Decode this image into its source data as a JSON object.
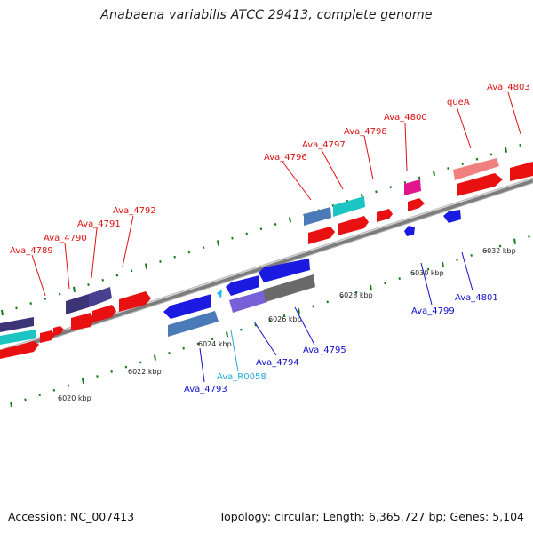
{
  "title": "Anabaena variabilis ATCC 29413, complete genome",
  "footer": {
    "accession": "Accession: NC_007413",
    "topology": "Topology: circular; Length: 6,365,727 bp; Genes: 5,104"
  },
  "colors": {
    "forward_label": "#dd1111",
    "reverse_label": "#1111cc",
    "rna_label": "#22aadd",
    "backbone": "#8a8a8a",
    "tick_mark": "#1a7a1a"
  },
  "ruler": {
    "unit": "kbp",
    "ticks": [
      "6020 kbp",
      "6022 kbp",
      "6024 kbp",
      "6026 kbp",
      "6028 kbp",
      "6030 kbp",
      "6032 kbp"
    ]
  },
  "genes": [
    {
      "id": "Ava_4789",
      "strand": "forward"
    },
    {
      "id": "Ava_4790",
      "strand": "forward"
    },
    {
      "id": "Ava_4791",
      "strand": "forward"
    },
    {
      "id": "Ava_4792",
      "strand": "forward"
    },
    {
      "id": "Ava_4796",
      "strand": "forward"
    },
    {
      "id": "Ava_4797",
      "strand": "forward"
    },
    {
      "id": "Ava_4798",
      "strand": "forward"
    },
    {
      "id": "Ava_4800",
      "strand": "forward"
    },
    {
      "id": "queA",
      "strand": "forward"
    },
    {
      "id": "Ava_4803",
      "strand": "forward"
    },
    {
      "id": "Ava_4793",
      "strand": "reverse"
    },
    {
      "id": "Ava_R0058",
      "strand": "reverse",
      "type": "RNA"
    },
    {
      "id": "Ava_4794",
      "strand": "reverse"
    },
    {
      "id": "Ava_4795",
      "strand": "reverse"
    },
    {
      "id": "Ava_4799",
      "strand": "reverse"
    },
    {
      "id": "Ava_4801",
      "strand": "reverse"
    }
  ]
}
